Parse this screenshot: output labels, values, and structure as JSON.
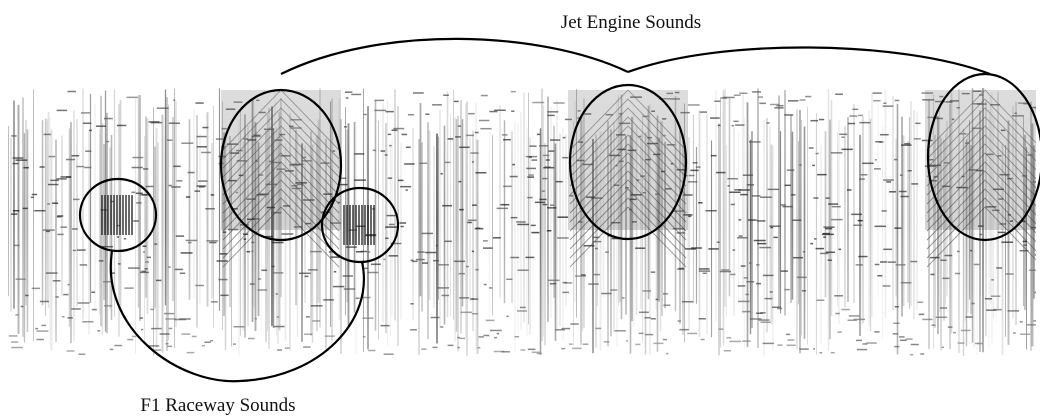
{
  "annotations": {
    "top_label": "Jet Engine Sounds",
    "bottom_label": "F1 Raceway Sounds"
  }
}
